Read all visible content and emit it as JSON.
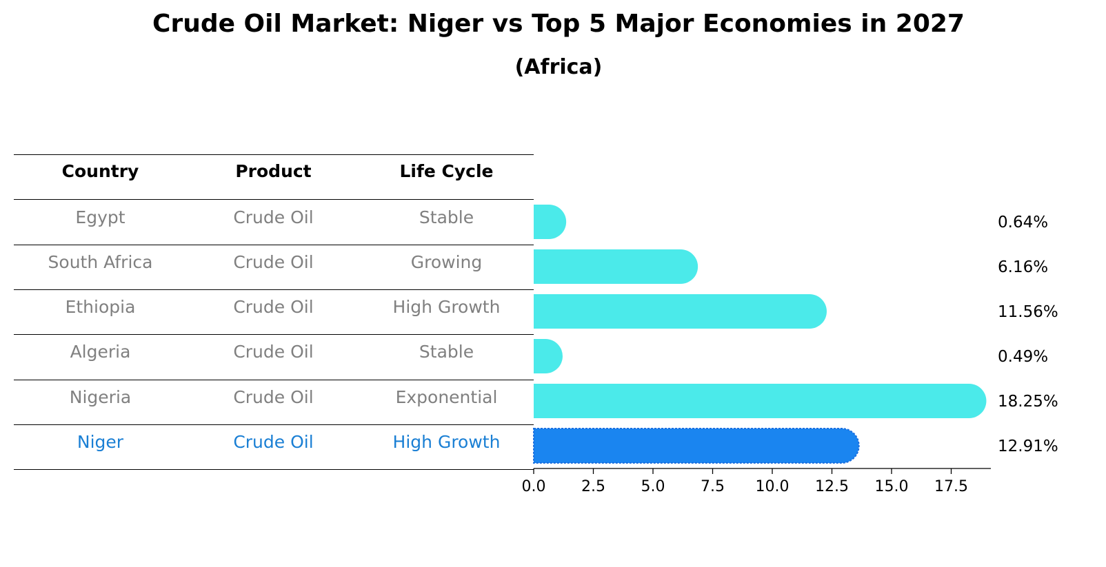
{
  "title": "Crude Oil Market: Niger vs Top 5 Major Economies in 2027",
  "subtitle": "(Africa)",
  "table": {
    "headers": [
      "Country",
      "Product",
      "Life Cycle"
    ],
    "rows": [
      [
        "Egypt",
        "Crude Oil",
        "Stable"
      ],
      [
        "South Africa",
        "Crude Oil",
        "Growing"
      ],
      [
        "Ethiopia",
        "Crude Oil",
        "High Growth"
      ],
      [
        "Algeria",
        "Crude Oil",
        "Stable"
      ],
      [
        "Nigeria",
        "Crude Oil",
        "Exponential"
      ],
      [
        "Niger",
        "Crude Oil",
        "High Growth"
      ]
    ],
    "highlight_row": 5
  },
  "chart_data": {
    "type": "bar",
    "orientation": "horizontal",
    "title": "Crude Oil Market: Niger vs Top 5 Major Economies in 2027",
    "subtitle": "(Africa)",
    "categories": [
      "Egypt",
      "South Africa",
      "Ethiopia",
      "Algeria",
      "Nigeria",
      "Niger"
    ],
    "values": [
      0.64,
      6.16,
      11.56,
      0.49,
      18.25,
      12.91
    ],
    "labels": [
      "0.64%",
      "6.16%",
      "11.56%",
      "0.49%",
      "18.25%",
      "12.91%"
    ],
    "highlight": "Niger",
    "xlim": [
      0,
      19.2
    ],
    "xticks": [
      "0.0",
      "2.5",
      "5.0",
      "7.5",
      "10.0",
      "12.5",
      "15.0",
      "17.5"
    ],
    "xlabel": "",
    "ylabel": "",
    "colors": {
      "bar": "#4beaea",
      "highlight": "#1a85f0",
      "highlight_text": "#1a7fd4",
      "muted_text": "#808080"
    }
  }
}
